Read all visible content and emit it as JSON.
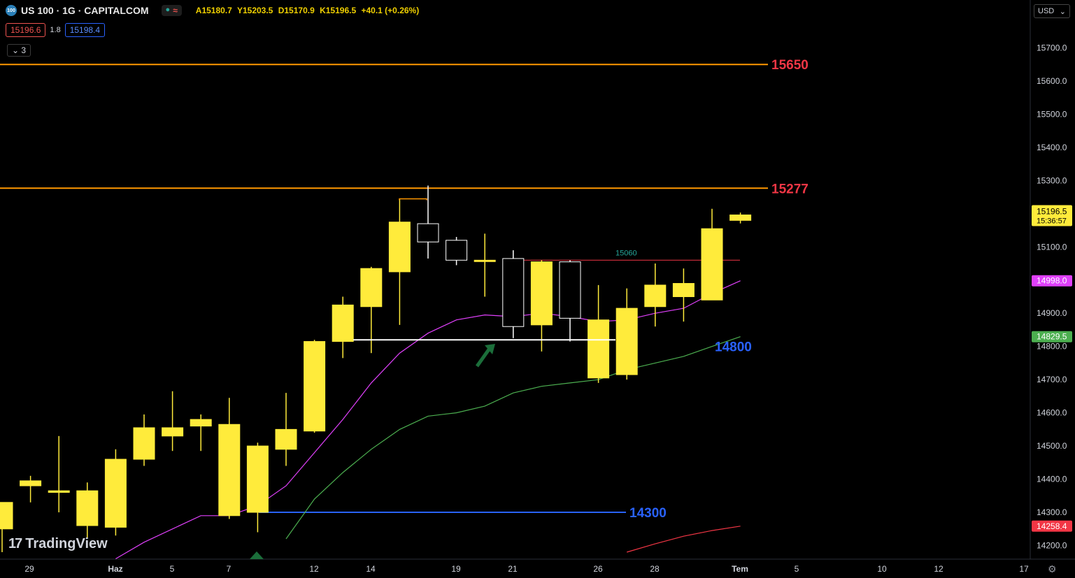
{
  "header": {
    "symbol_badge": "100",
    "title": "US 100 · 1G · CAPITALCOM",
    "status_dot": "●",
    "status_wave": "≈",
    "ohlc": {
      "open": "A15180.7",
      "high": "Y15203.5",
      "low": "D15170.9",
      "close": "K15196.5",
      "change": "+40.1 (+0.26%)"
    }
  },
  "trade": {
    "sell_price": "15196.6",
    "spread": "1.8",
    "buy_price": "15198.4"
  },
  "indicators_toggle": {
    "icon": "chevron-down-icon",
    "label": "3"
  },
  "price_scale": {
    "currency": "USD",
    "ticks": [
      "15700.0",
      "15600.0",
      "15500.0",
      "15400.0",
      "15300.0",
      "15100.0",
      "14900.0",
      "14800.0",
      "14700.0",
      "14600.0",
      "14500.0",
      "14400.0",
      "14300.0",
      "14200.0"
    ],
    "tick_values": [
      15700,
      15600,
      15500,
      15400,
      15300,
      15100,
      14900,
      14800,
      14700,
      14600,
      14500,
      14400,
      14300,
      14200
    ],
    "last_price": {
      "value": "15196.5",
      "countdown": "15:36:57",
      "color": "#ffeb3b"
    },
    "badges": [
      {
        "label": "14998.0",
        "value": 14998.0,
        "color": "#e040fb"
      },
      {
        "label": "14829.5",
        "value": 14829.5,
        "color": "#4caf50"
      },
      {
        "label": "14258.4",
        "value": 14258.4,
        "color": "#f23645"
      }
    ]
  },
  "time_axis": {
    "labels": [
      "29",
      "Haz",
      "5",
      "7",
      "12",
      "14",
      "19",
      "21",
      "26",
      "28",
      "Tem",
      "5",
      "10",
      "12",
      "17"
    ]
  },
  "chart_data": {
    "type": "candlestick",
    "symbol": "US 100",
    "timeframe": "1G",
    "candles": [
      {
        "o": 14250,
        "h": 14330,
        "l": 14180,
        "c": 14330
      },
      {
        "o": 14380,
        "h": 14410,
        "l": 14330,
        "c": 14395
      },
      {
        "o": 14360,
        "h": 14530,
        "l": 14300,
        "c": 14365
      },
      {
        "o": 14260,
        "h": 14390,
        "l": 14220,
        "c": 14365
      },
      {
        "o": 14255,
        "h": 14490,
        "l": 14230,
        "c": 14460
      },
      {
        "o": 14460,
        "h": 14595,
        "l": 14440,
        "c": 14555
      },
      {
        "o": 14530,
        "h": 14665,
        "l": 14485,
        "c": 14555
      },
      {
        "o": 14560,
        "h": 14595,
        "l": 14485,
        "c": 14580
      },
      {
        "o": 14290,
        "h": 14645,
        "l": 14280,
        "c": 14565
      },
      {
        "o": 14300,
        "h": 14510,
        "l": 14240,
        "c": 14500
      },
      {
        "o": 14490,
        "h": 14660,
        "l": 14440,
        "c": 14550
      },
      {
        "o": 14545,
        "h": 14820,
        "l": 14540,
        "c": 14815
      },
      {
        "o": 14815,
        "h": 14950,
        "l": 14765,
        "c": 14925
      },
      {
        "o": 14920,
        "h": 15040,
        "l": 14780,
        "c": 15035
      },
      {
        "o": 15025,
        "h": 15245,
        "l": 14865,
        "c": 15175
      },
      {
        "o": 15170,
        "h": 15285,
        "l": 15065,
        "c": 15115
      },
      {
        "o": 15120,
        "h": 15130,
        "l": 15045,
        "c": 15060
      },
      {
        "o": 15060,
        "h": 15140,
        "l": 14950,
        "c": 15060
      },
      {
        "o": 15065,
        "h": 15090,
        "l": 14825,
        "c": 14860
      },
      {
        "o": 14865,
        "h": 15060,
        "l": 14785,
        "c": 15055
      },
      {
        "o": 15055,
        "h": 15060,
        "l": 14815,
        "c": 14885
      },
      {
        "o": 14705,
        "h": 14985,
        "l": 14690,
        "c": 14880
      },
      {
        "o": 14715,
        "h": 14975,
        "l": 14700,
        "c": 14915
      },
      {
        "o": 14920,
        "h": 15050,
        "l": 14860,
        "c": 14985
      },
      {
        "o": 14950,
        "h": 15035,
        "l": 14875,
        "c": 14990
      },
      {
        "o": 14940,
        "h": 15215,
        "l": 14940,
        "c": 15155
      },
      {
        "o": 15180,
        "h": 15203.5,
        "l": 15170.9,
        "c": 15196.5
      }
    ],
    "moving_averages": [
      {
        "color": "#e040fb",
        "values": [
          null,
          null,
          null,
          null,
          14160,
          14210,
          14250,
          14290,
          14290,
          14320,
          14380,
          14480,
          14580,
          14690,
          14780,
          14840,
          14880,
          14895,
          14890,
          14900,
          14890,
          14875,
          14880,
          14900,
          14915,
          14960,
          14998
        ]
      },
      {
        "color": "#4caf50",
        "values": [
          null,
          null,
          null,
          null,
          null,
          null,
          null,
          null,
          null,
          null,
          14220,
          14340,
          14420,
          14490,
          14550,
          14590,
          14600,
          14620,
          14660,
          14680,
          14690,
          14700,
          14730,
          14750,
          14770,
          14800,
          14829.5
        ]
      },
      {
        "color": "#f23645",
        "values": [
          null,
          null,
          null,
          null,
          null,
          null,
          null,
          null,
          null,
          null,
          null,
          null,
          null,
          null,
          null,
          null,
          null,
          null,
          null,
          null,
          null,
          null,
          14180,
          14205,
          14228,
          14245,
          14258.4
        ]
      }
    ],
    "levels": [
      {
        "value": 15650,
        "label": "15650",
        "color": "#ff9800",
        "label_color": "#f23645"
      },
      {
        "value": 15277,
        "label": "15277",
        "color": "#ff9800",
        "label_color": "#f23645"
      },
      {
        "value": 15060,
        "label": "15060",
        "color": "#f23645",
        "label_color": "#26a69a"
      },
      {
        "value": 14300,
        "label": "14300",
        "color": "#2962ff",
        "label_color": "#2962ff"
      }
    ],
    "annotation_labels": {
      "support": "14800"
    },
    "colors": {
      "up": "#ffeb3b",
      "down": "#000000",
      "outline": "#ffffff",
      "ma_fast": "#e040fb",
      "ma_slow": "#4caf50",
      "arrow": "#1b6e3a"
    }
  },
  "branding": {
    "logo_text": "TradingView",
    "logo_mark": "17"
  },
  "settings_icon": "gear-icon"
}
